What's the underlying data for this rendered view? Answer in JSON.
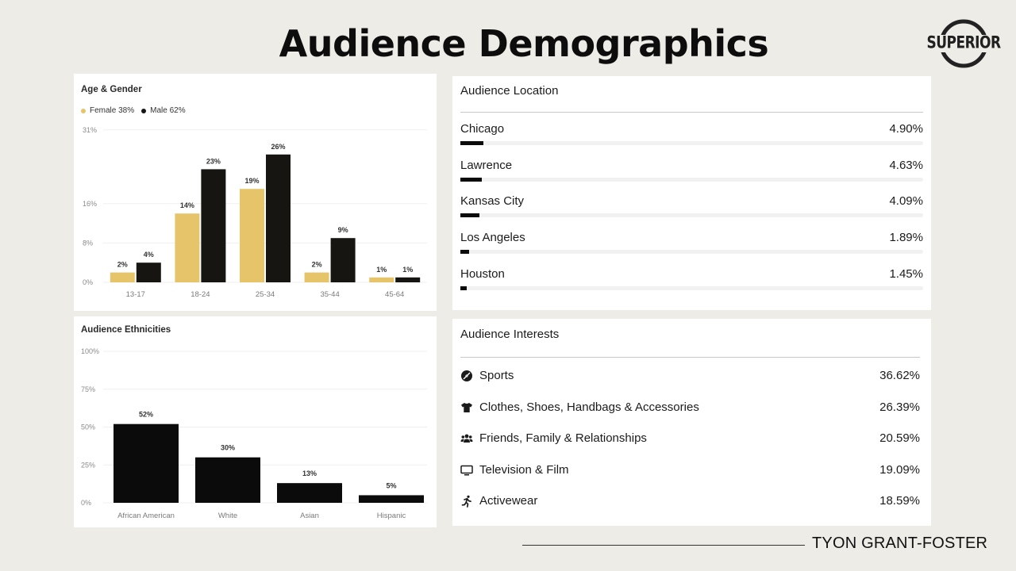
{
  "page": {
    "title": "Audience Demographics",
    "logo_text": "SUPERIOR",
    "signature": "TYON GRANT-FOSTER"
  },
  "colors": {
    "female": "#e6c46a",
    "male": "#171512",
    "ethnicity": "#0b0b0b",
    "background": "#eeece6"
  },
  "chart_data": [
    {
      "type": "bar",
      "title": "Age & Gender",
      "categories": [
        "13-17",
        "18-24",
        "25-34",
        "35-44",
        "45-64"
      ],
      "series": [
        {
          "name": "Female 38%",
          "values": [
            2,
            14,
            19,
            2,
            1
          ],
          "labels": [
            "2%",
            "14%",
            "19%",
            "2%",
            "1%"
          ]
        },
        {
          "name": "Male 62%",
          "values": [
            4,
            23,
            26,
            9,
            1
          ],
          "labels": [
            "4%",
            "23%",
            "26%",
            "9%",
            "1%"
          ]
        }
      ],
      "yticks": [
        "31%",
        "16%",
        "8%",
        "0%"
      ],
      "legend": "top-left",
      "grid": true
    },
    {
      "type": "bar",
      "title": "Audience Ethnicities",
      "categories": [
        "African American",
        "White",
        "Asian",
        "Hispanic"
      ],
      "values": [
        52,
        30,
        13,
        5
      ],
      "labels": [
        "52%",
        "30%",
        "13%",
        "5%"
      ],
      "yticks": [
        "100%",
        "75%",
        "50%",
        "25%",
        "0%"
      ],
      "ylim": [
        0,
        100
      ],
      "grid": true
    }
  ],
  "location": {
    "title": "Audience Location",
    "items": [
      {
        "name": "Chicago",
        "pct": "4.90%",
        "value": 4.9
      },
      {
        "name": "Lawrence",
        "pct": "4.63%",
        "value": 4.63
      },
      {
        "name": "Kansas City",
        "pct": "4.09%",
        "value": 4.09
      },
      {
        "name": "Los Angeles",
        "pct": "1.89%",
        "value": 1.89
      },
      {
        "name": "Houston",
        "pct": "1.45%",
        "value": 1.45
      }
    ]
  },
  "interests": {
    "title": "Audience Interests",
    "items": [
      {
        "icon": "football-icon",
        "label": "Sports",
        "pct": "36.62%"
      },
      {
        "icon": "tshirt-icon",
        "label": "Clothes, Shoes, Handbags & Accessories",
        "pct": "26.39%"
      },
      {
        "icon": "people-group-icon",
        "label": "Friends, Family & Relationships",
        "pct": "20.59%"
      },
      {
        "icon": "monitor-icon",
        "label": "Television & Film",
        "pct": "19.09%"
      },
      {
        "icon": "running-person-icon",
        "label": "Activewear",
        "pct": "18.59%"
      }
    ]
  }
}
